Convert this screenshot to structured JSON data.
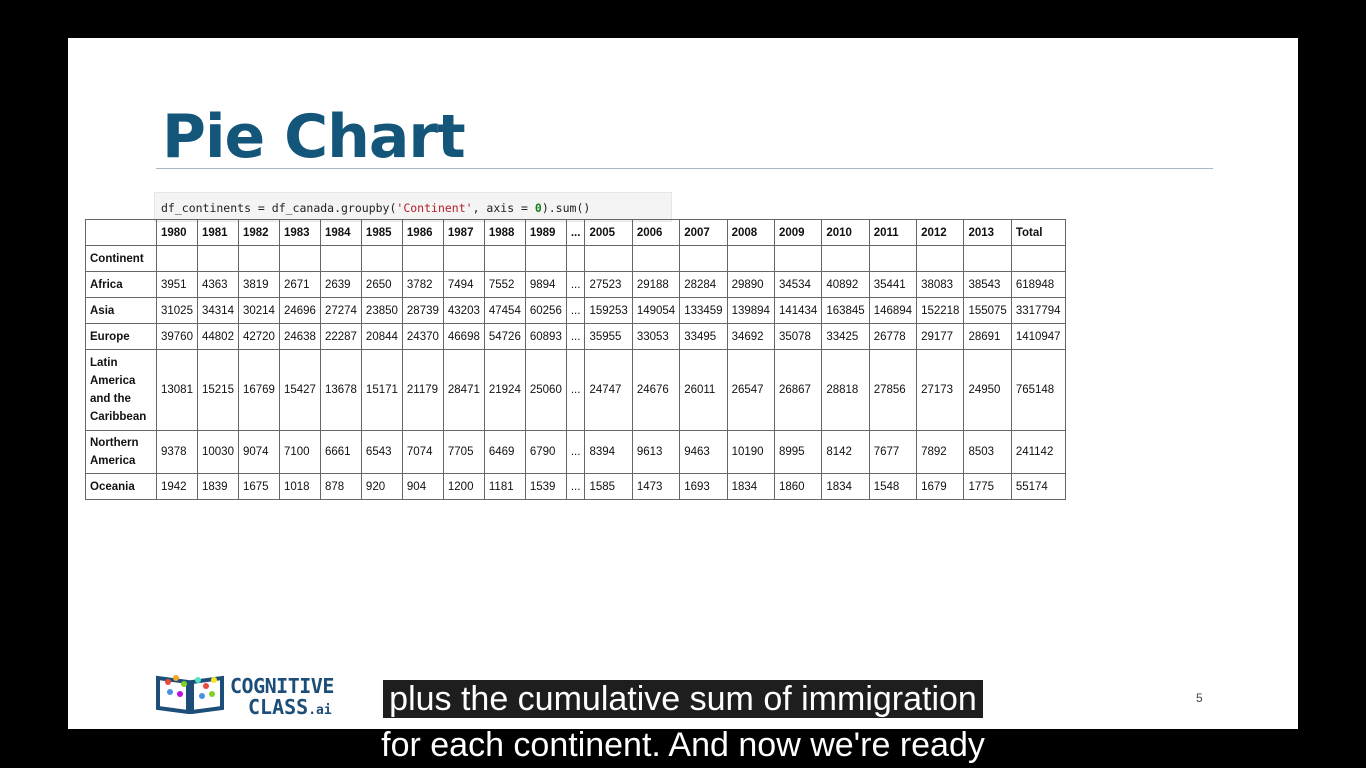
{
  "slide": {
    "title": "Pie Chart",
    "code": {
      "part1": "df_continents = df_canada.groupby(",
      "string": "'Continent'",
      "part2": ", axis = ",
      "number": "0",
      "part3": ").sum()"
    },
    "page_number": "5",
    "logo": {
      "line1": "COGNITIVE",
      "line2": "CLASS",
      "suffix": ".ai"
    }
  },
  "table": {
    "columns": [
      "",
      "1980",
      "1981",
      "1982",
      "1983",
      "1984",
      "1985",
      "1986",
      "1987",
      "1988",
      "1989",
      "...",
      "2005",
      "2006",
      "2007",
      "2008",
      "2009",
      "2010",
      "2011",
      "2012",
      "2013",
      "Total"
    ],
    "index_name": "Continent",
    "rows": [
      [
        "Africa",
        "3951",
        "4363",
        "3819",
        "2671",
        "2639",
        "2650",
        "3782",
        "7494",
        "7552",
        "9894",
        "...",
        "27523",
        "29188",
        "28284",
        "29890",
        "34534",
        "40892",
        "35441",
        "38083",
        "38543",
        "618948"
      ],
      [
        "Asia",
        "31025",
        "34314",
        "30214",
        "24696",
        "27274",
        "23850",
        "28739",
        "43203",
        "47454",
        "60256",
        "...",
        "159253",
        "149054",
        "133459",
        "139894",
        "141434",
        "163845",
        "146894",
        "152218",
        "155075",
        "3317794"
      ],
      [
        "Europe",
        "39760",
        "44802",
        "42720",
        "24638",
        "22287",
        "20844",
        "24370",
        "46698",
        "54726",
        "60893",
        "...",
        "35955",
        "33053",
        "33495",
        "34692",
        "35078",
        "33425",
        "26778",
        "29177",
        "28691",
        "1410947"
      ],
      [
        "Latin America and the Caribbean",
        "13081",
        "15215",
        "16769",
        "15427",
        "13678",
        "15171",
        "21179",
        "28471",
        "21924",
        "25060",
        "...",
        "24747",
        "24676",
        "26011",
        "26547",
        "26867",
        "28818",
        "27856",
        "27173",
        "24950",
        "765148"
      ],
      [
        "Northern America",
        "9378",
        "10030",
        "9074",
        "7100",
        "6661",
        "6543",
        "7074",
        "7705",
        "6469",
        "6790",
        "...",
        "8394",
        "9613",
        "9463",
        "10190",
        "8995",
        "8142",
        "7677",
        "7892",
        "8503",
        "241142"
      ],
      [
        "Oceania",
        "1942",
        "1839",
        "1675",
        "1018",
        "878",
        "920",
        "904",
        "1200",
        "1181",
        "1539",
        "...",
        "1585",
        "1473",
        "1693",
        "1834",
        "1860",
        "1834",
        "1548",
        "1679",
        "1775",
        "55174"
      ]
    ]
  },
  "subtitles": {
    "line1": "plus the cumulative sum of immigration",
    "line2": "for each continent. And now we're ready"
  }
}
